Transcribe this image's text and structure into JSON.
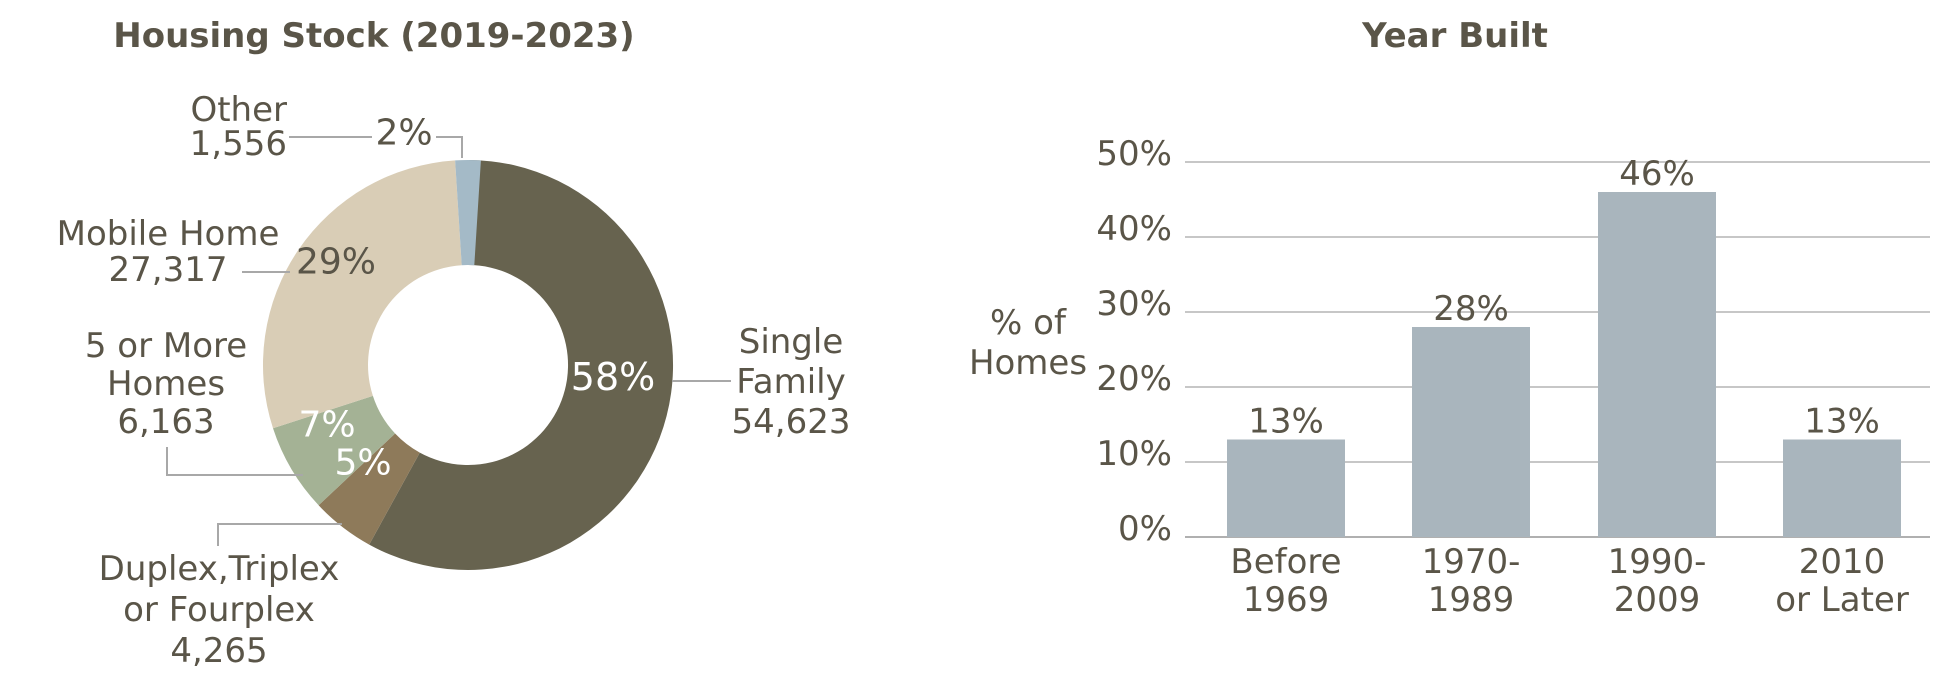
{
  "page": {
    "background": "#ffffff",
    "text_color": "#5a5548"
  },
  "colors": {
    "leader_line": "#a8a8a8",
    "gridline": "#c7c7c7",
    "axis_line": "#b0b0b0"
  },
  "chart_data": [
    {
      "type": "pie",
      "variant": "donut",
      "title": "Housing Stock (2019-2023)",
      "start_angle": "12-oclock",
      "direction": "clockwise",
      "hole_ratio": 0.49,
      "slices": [
        {
          "name": "Single Family",
          "count": 54623,
          "pct": 58,
          "pct_label": "58%",
          "callout": "Single\nFamily\n54,623",
          "color": "#67634f",
          "pct_label_color": "#ffffff"
        },
        {
          "name": "Duplex, Triplex or Fourplex",
          "count": 4265,
          "pct": 5,
          "pct_label": "5%",
          "callout": "Duplex,Triplex\nor Fourplex\n4,265",
          "color": "#8e7a5a",
          "pct_label_color": "#ffffff"
        },
        {
          "name": "5 or More Homes",
          "count": 6163,
          "pct": 7,
          "pct_label": "7%",
          "callout": "5 or More\nHomes\n6,163",
          "color": "#a4b295",
          "pct_label_color": "#ffffff"
        },
        {
          "name": "Mobile Home",
          "count": 27317,
          "pct": 29,
          "pct_label": "29%",
          "callout": "Mobile Home\n27,317",
          "color": "#d9cdb6",
          "pct_label_color": "#5a5548"
        },
        {
          "name": "Other",
          "count": 1556,
          "pct": 2,
          "pct_label": "2%",
          "callout": "Other\n1,556",
          "color": "#a4bac7",
          "pct_label_color": "#5a5548"
        }
      ]
    },
    {
      "type": "bar",
      "title": "Year Built",
      "ylabel": "% of\nHomes",
      "categories": [
        "Before\n1969",
        "1970-\n1989",
        "1990-\n2009",
        "2010\nor Later"
      ],
      "values": [
        13,
        28,
        46,
        13
      ],
      "data_labels": [
        "13%",
        "28%",
        "46%",
        "13%"
      ],
      "ylim": [
        0,
        50
      ],
      "grid": true,
      "yticks": [
        {
          "value": 0,
          "label": "0%"
        },
        {
          "value": 10,
          "label": "10%"
        },
        {
          "value": 20,
          "label": "20%"
        },
        {
          "value": 30,
          "label": "30%"
        },
        {
          "value": 40,
          "label": "40%"
        },
        {
          "value": 50,
          "label": "50%"
        }
      ],
      "bar_color": "#a9b5bd"
    }
  ]
}
